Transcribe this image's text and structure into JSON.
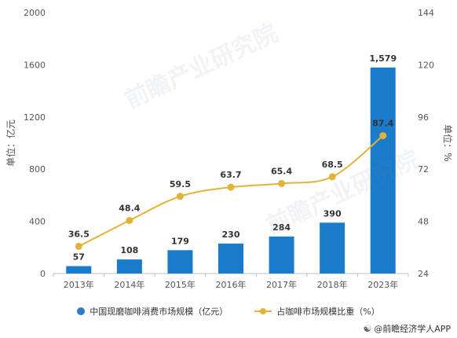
{
  "chart_data": {
    "type": "bar",
    "categories": [
      "2013年",
      "2014年",
      "2015年",
      "2016年",
      "2017年",
      "2018年",
      "2023年"
    ],
    "series": [
      {
        "name": "中国现磨咖啡消费市场规模（亿元）",
        "type": "bar",
        "axis": "left",
        "values": [
          57,
          108,
          179,
          230,
          284,
          390,
          1579
        ],
        "labels": [
          "57",
          "108",
          "179",
          "230",
          "284",
          "390",
          "1,579"
        ],
        "color": "#1a7bcb"
      },
      {
        "name": "占咖啡市场规模比重（%）",
        "type": "line",
        "axis": "right",
        "values": [
          36.5,
          48.4,
          59.5,
          63.7,
          65.4,
          68.5,
          87.4
        ],
        "labels": [
          "36.5",
          "48.4",
          "59.5",
          "63.7",
          "65.4",
          "68.5",
          "87.4"
        ],
        "color": "#e3b338"
      }
    ],
    "ylabel": "单位：亿元",
    "ylabel_right": "单位：%",
    "ylim": [
      0,
      2000
    ],
    "ylim_right": [
      24,
      144
    ],
    "yticks": [
      "0",
      "400",
      "800",
      "1200",
      "1600",
      "2000"
    ],
    "yticks_right": [
      "24",
      "48",
      "72",
      "96",
      "120",
      "144"
    ],
    "grid": false,
    "legend_position": "bottom"
  },
  "legend": {
    "bar_label": "中国现磨咖啡消费市场规模（亿元）",
    "line_label": "占咖啡市场规模比重（%）"
  },
  "source": "@前瞻经济学人APP",
  "watermark": "前瞻产业研究院",
  "watermark_icon": "qianzhan-logo-icon",
  "source_icon": "qianzhan-logo-icon"
}
